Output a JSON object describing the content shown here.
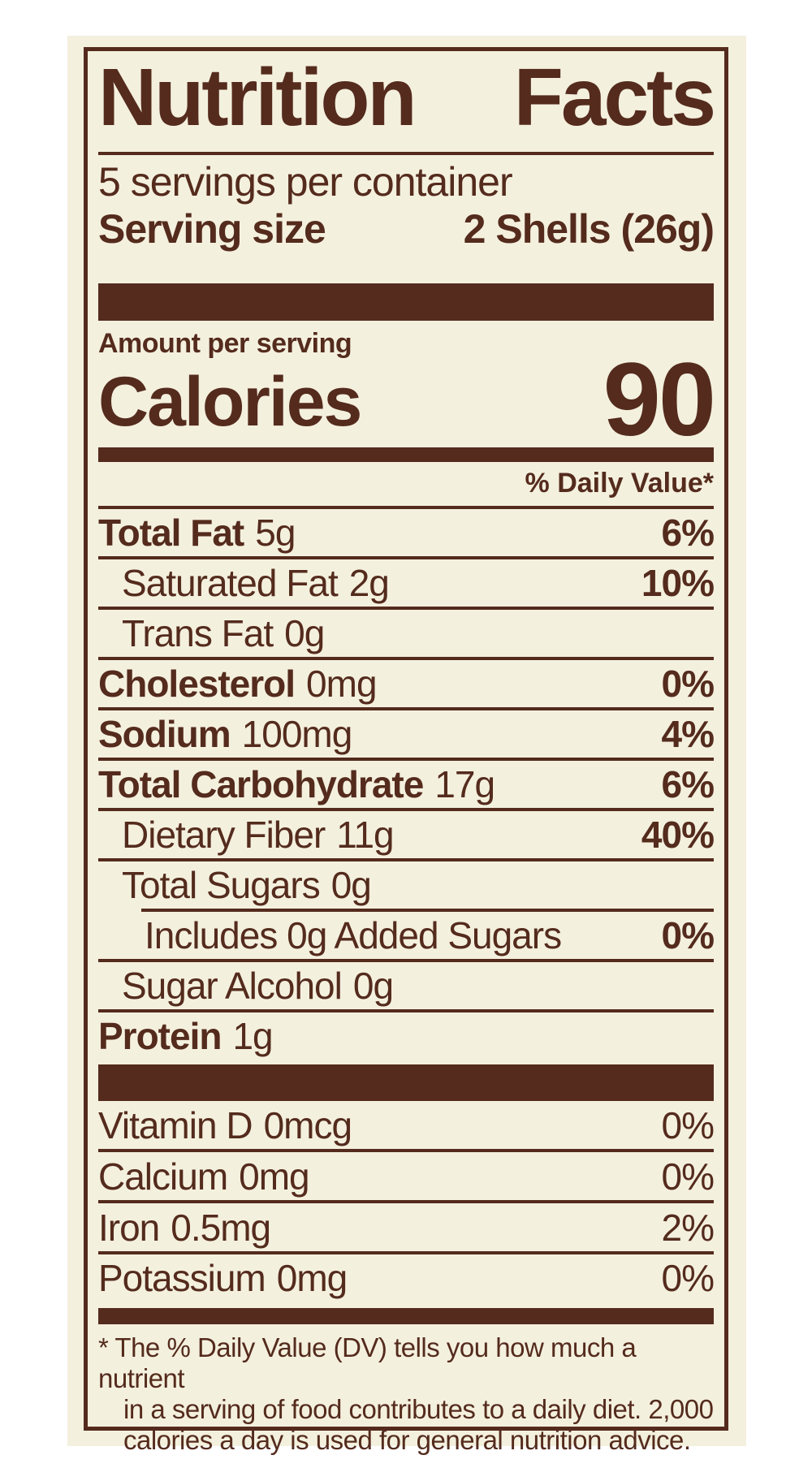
{
  "colors": {
    "brown": "#542B1D",
    "label_background": "#F4F0DE",
    "page_background": "#FFFFFF"
  },
  "header": {
    "title_word1": "Nutrition",
    "title_word2": "Facts",
    "servings_per_container": "5 servings per container",
    "serving_size_label": "Serving size",
    "serving_size_value": "2 Shells (26g)"
  },
  "calories": {
    "amount_label": "Amount per serving",
    "label": "Calories",
    "value": "90"
  },
  "daily_value_header": "% Daily Value*",
  "nutrients": [
    {
      "name": "Total Fat",
      "amount": "5g",
      "dv": "6%"
    },
    {
      "name": "Saturated Fat",
      "amount": "2g",
      "dv": "10%"
    },
    {
      "name": "Trans Fat",
      "amount": "0g",
      "dv": ""
    },
    {
      "name": "Cholesterol",
      "amount": "0mg",
      "dv": "0%"
    },
    {
      "name": "Sodium",
      "amount": "100mg",
      "dv": "4%"
    },
    {
      "name": "Total Carbohydrate",
      "amount": "17g",
      "dv": "6%"
    },
    {
      "name": "Dietary Fiber",
      "amount": "11g",
      "dv": "40%"
    },
    {
      "name": "Total Sugars",
      "amount": "0g",
      "dv": ""
    },
    {
      "name": "Includes 0g Added Sugars",
      "amount": "",
      "dv": "0%"
    },
    {
      "name": "Sugar Alcohol",
      "amount": "0g",
      "dv": ""
    },
    {
      "name": "Protein",
      "amount": "1g",
      "dv": ""
    }
  ],
  "micronutrients": [
    {
      "name": "Vitamin D",
      "amount": "0mcg",
      "dv": "0%"
    },
    {
      "name": "Calcium",
      "amount": "0mg",
      "dv": "0%"
    },
    {
      "name": "Iron",
      "amount": "0.5mg",
      "dv": "2%"
    },
    {
      "name": "Potassium",
      "amount": "0mg",
      "dv": "0%"
    }
  ],
  "footnote_lines": [
    "* The % Daily Value (DV) tells you how much a nutrient",
    "in a serving of food contributes to a daily diet. 2,000",
    "calories a day is used for general nutrition advice."
  ]
}
